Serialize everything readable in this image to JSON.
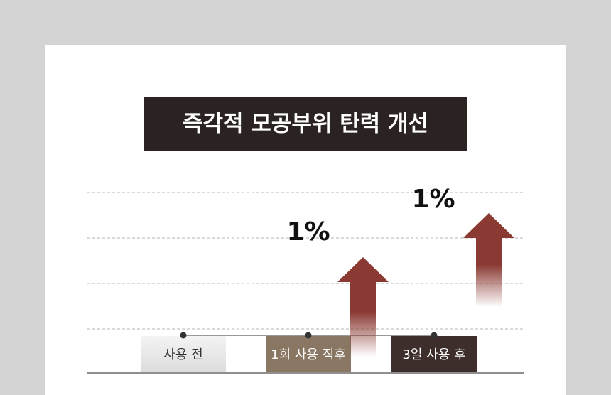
{
  "title": "즉각적 모공부위 탄력 개선",
  "stages": [
    "사용 전",
    "1회 사용 직후",
    "3일 사용 후"
  ],
  "improvements": [
    "1%",
    "1%"
  ]
}
